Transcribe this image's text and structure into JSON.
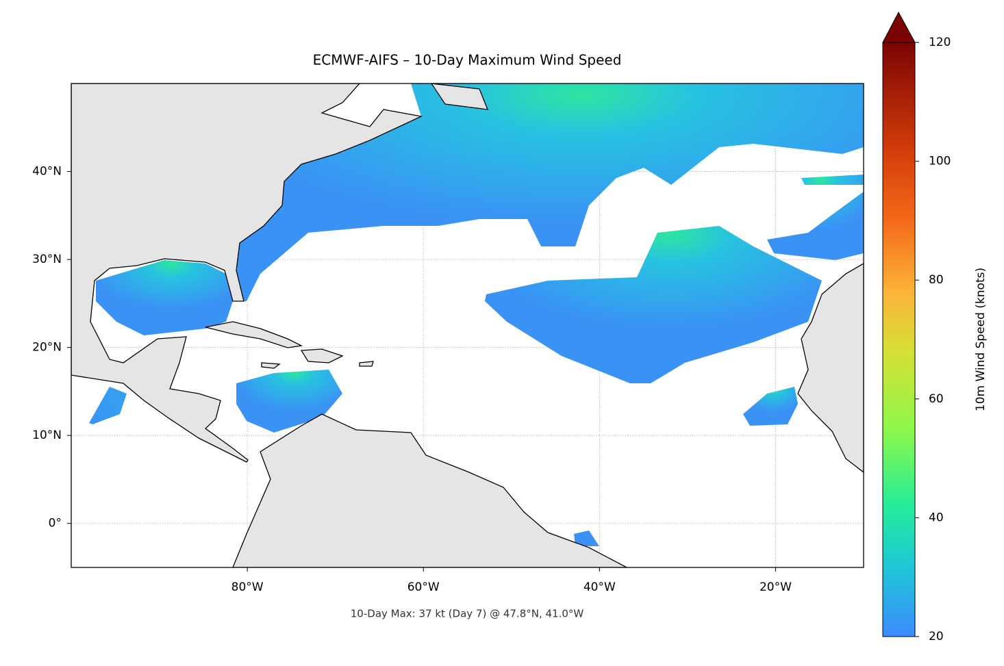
{
  "chart_data": {
    "type": "map",
    "title": "ECMWF-AIFS – 10-Day Maximum Wind Speed",
    "annotation": "10-Day Max: 37 kt (Day 7) @ 47.8°N, 41.0°W",
    "xlim": [
      -100,
      -10
    ],
    "ylim": [
      -5,
      50
    ],
    "xticks": [
      {
        "value": -80,
        "label": "80°W"
      },
      {
        "value": -60,
        "label": "60°W"
      },
      {
        "value": -40,
        "label": "40°W"
      },
      {
        "value": -20,
        "label": "20°W"
      }
    ],
    "yticks": [
      {
        "value": 0,
        "label": "0°"
      },
      {
        "value": 10,
        "label": "10°N"
      },
      {
        "value": 20,
        "label": "20°N"
      },
      {
        "value": 30,
        "label": "30°N"
      },
      {
        "value": 40,
        "label": "40°N"
      }
    ],
    "grid": true,
    "colorbar": {
      "label": "10m Wind Speed (knots)",
      "lim": [
        20,
        120
      ],
      "ticks": [
        20,
        40,
        60,
        80,
        100,
        120
      ]
    }
  }
}
